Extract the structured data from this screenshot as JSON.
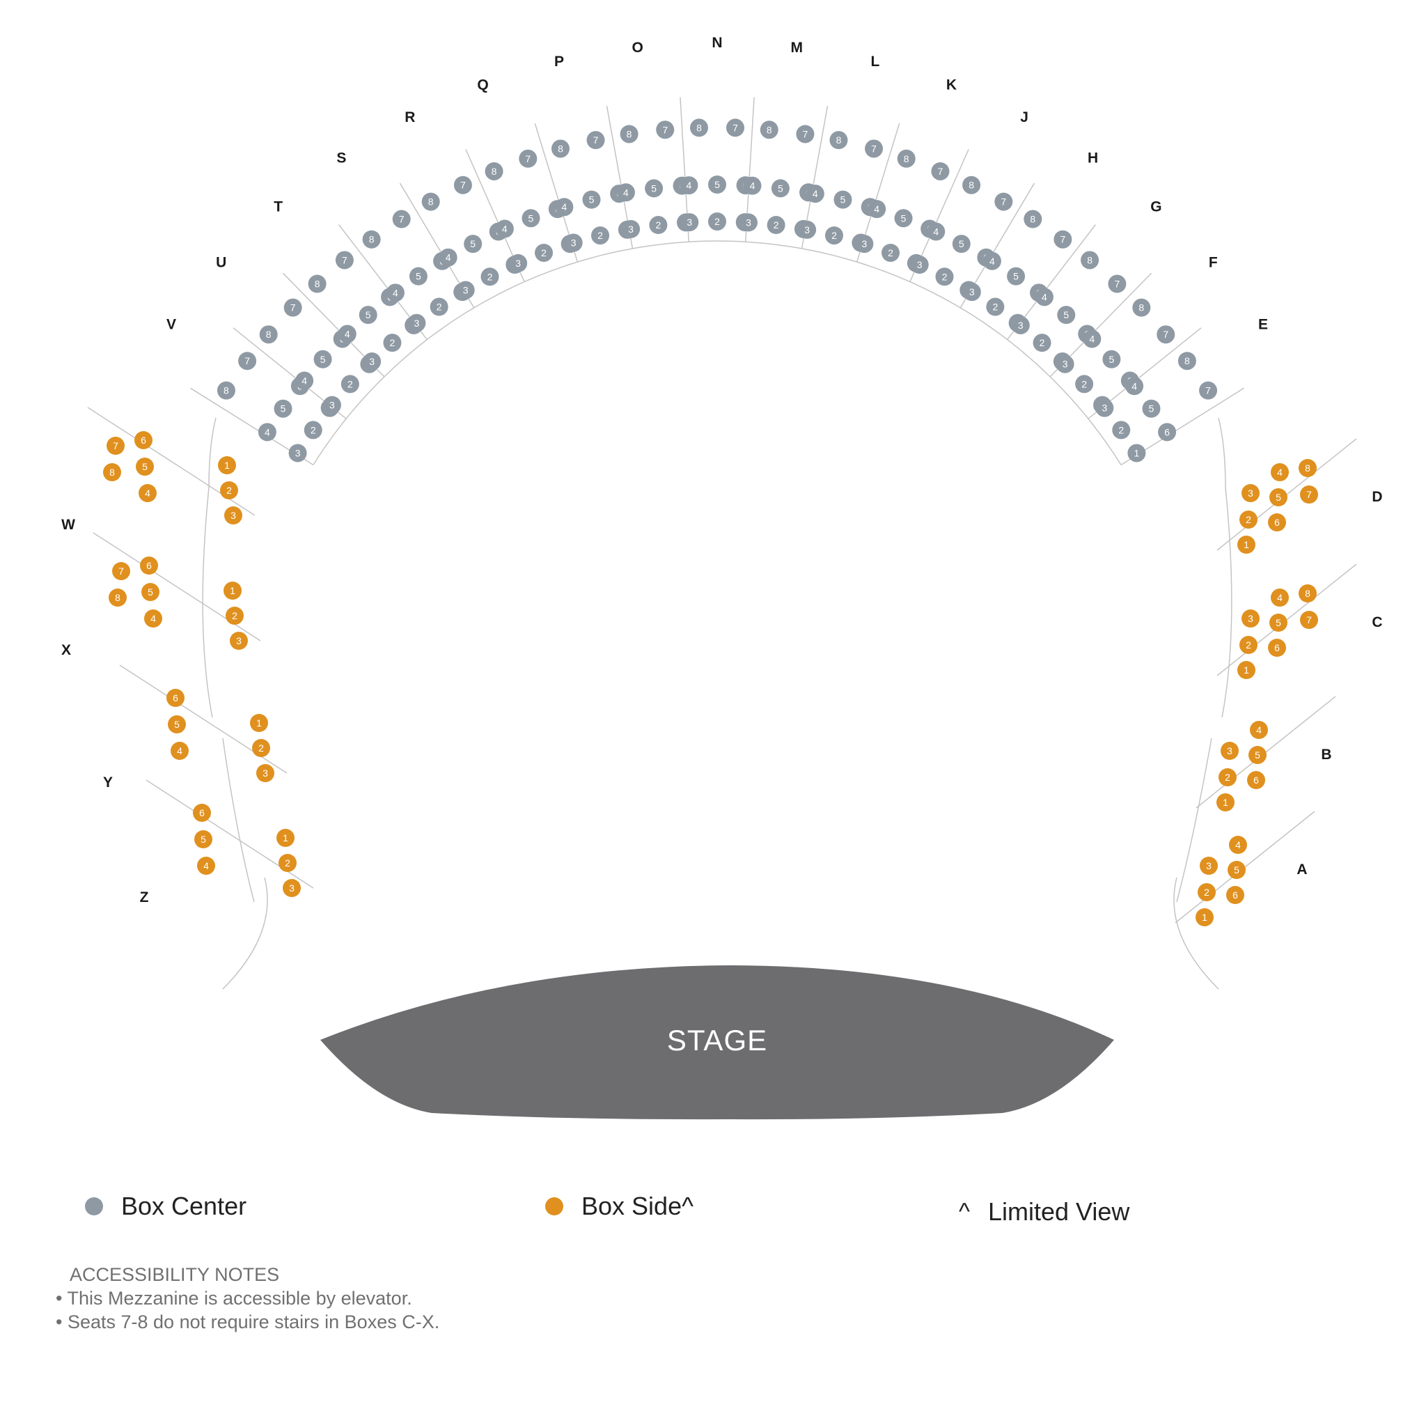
{
  "colors": {
    "box_center": "#8e99a3",
    "box_side": "#e0901e",
    "stage": "#6d6d70",
    "lines": "#c4c4c4"
  },
  "stage_label": "STAGE",
  "legend": {
    "center_label": "Box Center",
    "side_label": "Box Side^",
    "limited_symbol": "^",
    "limited_label": "Limited View"
  },
  "notes": {
    "title": "ACCESSIBILITY NOTES",
    "items": [
      "This Mezzanine is accessible by elevator.",
      "Seats 7-8 do not require stairs in Boxes C-X."
    ]
  },
  "boxes": [
    {
      "name": "Z",
      "type": "side",
      "seats": [
        "1",
        "2",
        "3",
        "4",
        "5",
        "6"
      ]
    },
    {
      "name": "Y",
      "type": "side",
      "seats": [
        "1",
        "2",
        "3",
        "4",
        "5",
        "6"
      ]
    },
    {
      "name": "X",
      "type": "side",
      "seats": [
        "1",
        "2",
        "3",
        "4",
        "5",
        "6",
        "7",
        "8"
      ]
    },
    {
      "name": "W",
      "type": "side",
      "seats": [
        "1",
        "2",
        "3",
        "4",
        "5",
        "6",
        "7",
        "8"
      ]
    },
    {
      "name": "V",
      "type": "center",
      "seats": [
        "1",
        "2",
        "3",
        "4",
        "5",
        "6",
        "7",
        "8"
      ]
    },
    {
      "name": "U",
      "type": "center",
      "seats": [
        "1",
        "2",
        "3",
        "4",
        "5",
        "6",
        "7",
        "8"
      ]
    },
    {
      "name": "T",
      "type": "center",
      "seats": [
        "1",
        "2",
        "3",
        "4",
        "5",
        "6",
        "7",
        "8"
      ]
    },
    {
      "name": "S",
      "type": "center",
      "seats": [
        "1",
        "2",
        "3",
        "4",
        "5",
        "6",
        "7",
        "8"
      ]
    },
    {
      "name": "R",
      "type": "center",
      "seats": [
        "1",
        "2",
        "3",
        "4",
        "5",
        "6",
        "7",
        "8"
      ]
    },
    {
      "name": "Q",
      "type": "center",
      "seats": [
        "1",
        "2",
        "3",
        "4",
        "5",
        "6",
        "7",
        "8"
      ]
    },
    {
      "name": "P",
      "type": "center",
      "seats": [
        "1",
        "2",
        "3",
        "4",
        "5",
        "6",
        "7",
        "8"
      ]
    },
    {
      "name": "O",
      "type": "center",
      "seats": [
        "1",
        "2",
        "3",
        "4",
        "5",
        "6",
        "7",
        "8"
      ]
    },
    {
      "name": "N",
      "type": "center",
      "seats": [
        "1",
        "2",
        "3",
        "4",
        "5",
        "6",
        "7",
        "8"
      ]
    },
    {
      "name": "M",
      "type": "center",
      "seats": [
        "1",
        "2",
        "3",
        "4",
        "5",
        "6",
        "7",
        "8"
      ]
    },
    {
      "name": "L",
      "type": "center",
      "seats": [
        "1",
        "2",
        "3",
        "4",
        "5",
        "6",
        "7",
        "8"
      ]
    },
    {
      "name": "K",
      "type": "center",
      "seats": [
        "1",
        "2",
        "3",
        "4",
        "5",
        "6",
        "7",
        "8"
      ]
    },
    {
      "name": "J",
      "type": "center",
      "seats": [
        "1",
        "2",
        "3",
        "4",
        "5",
        "6",
        "7",
        "8"
      ]
    },
    {
      "name": "H",
      "type": "center",
      "seats": [
        "1",
        "2",
        "3",
        "4",
        "5",
        "6",
        "7",
        "8"
      ]
    },
    {
      "name": "G",
      "type": "center",
      "seats": [
        "1",
        "2",
        "3",
        "4",
        "5",
        "6",
        "7",
        "8"
      ]
    },
    {
      "name": "F",
      "type": "center",
      "seats": [
        "1",
        "2",
        "3",
        "4",
        "5",
        "6",
        "7",
        "8"
      ]
    },
    {
      "name": "E",
      "type": "center",
      "seats": [
        "1",
        "2",
        "3",
        "4",
        "5",
        "6",
        "7",
        "8"
      ]
    },
    {
      "name": "D",
      "type": "side",
      "seats": [
        "1",
        "2",
        "3",
        "4",
        "5",
        "6",
        "7",
        "8"
      ]
    },
    {
      "name": "C",
      "type": "side",
      "seats": [
        "1",
        "2",
        "3",
        "4",
        "5",
        "6",
        "7",
        "8"
      ]
    },
    {
      "name": "B",
      "type": "side",
      "seats": [
        "1",
        "2",
        "3",
        "4",
        "5",
        "6"
      ]
    },
    {
      "name": "A",
      "type": "side",
      "seats": [
        "1",
        "2",
        "3",
        "4",
        "5",
        "6"
      ]
    }
  ]
}
